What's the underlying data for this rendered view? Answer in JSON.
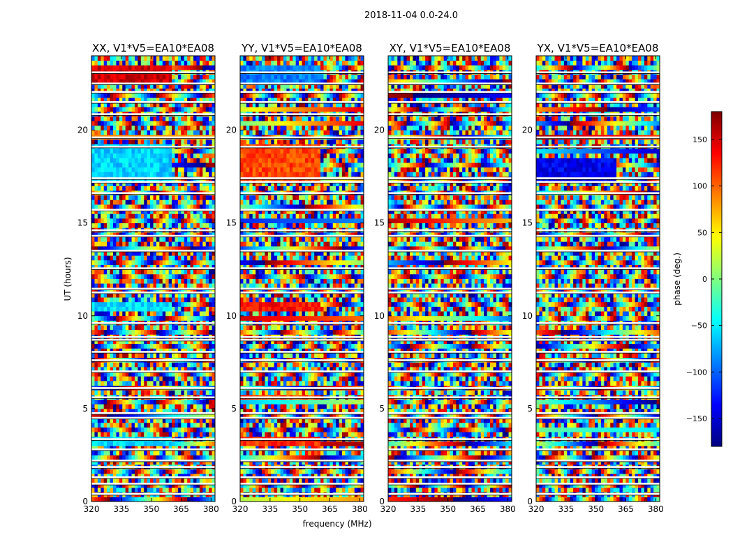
{
  "chart_data": {
    "type": "heatmap",
    "title": "2018-11-04 0.0-24.0",
    "xlabel": "frequency (MHz)",
    "ylabel": "UT (hours)",
    "xlim": [
      320,
      382
    ],
    "ylim": [
      0,
      24
    ],
    "x_ticks": [
      320,
      335,
      350,
      365,
      380
    ],
    "y_ticks": [
      0,
      5,
      10,
      15,
      20
    ],
    "colorbar": {
      "label": "phase (deg.)",
      "range": [
        -180,
        180
      ],
      "ticks": [
        -150,
        -100,
        -50,
        0,
        50,
        100,
        150
      ],
      "tick_labels": [
        "−150",
        "−100",
        "−50",
        "0",
        "50",
        "100",
        "150"
      ],
      "colormap": "jet",
      "colors": [
        "#00007f",
        "#0000ff",
        "#007fff",
        "#00ffff",
        "#7fff7f",
        "#ffff00",
        "#ff7f00",
        "#ff0000",
        "#7f0000"
      ]
    },
    "panels": [
      {
        "name": "XX, V1*V5=EA10*EA08",
        "pol": "XX"
      },
      {
        "name": "YY, V1*V5=EA10*EA08",
        "pol": "YY"
      },
      {
        "name": "XY, V1*V5=EA10*EA08",
        "pol": "XY"
      },
      {
        "name": "YX, V1*V5=EA10*EA08",
        "pol": "YX"
      }
    ],
    "flagged_ut_hours": [
      0.4,
      0.95,
      1.3,
      1.85,
      2.2,
      2.8,
      3.35,
      4.5,
      4.75,
      5.6,
      6.1,
      7.0,
      7.6,
      8.05,
      8.7,
      8.85,
      9.6,
      11.25,
      11.45,
      12.55,
      13.5,
      14.3,
      14.6,
      15.7,
      16.6,
      17.2,
      17.4,
      19.1,
      19.6,
      20.85,
      21.5,
      22.05,
      22.5,
      23.1
    ],
    "phase_patterns": {
      "XX": {
        "coherent_bands_hours": [
          [
            17.3,
            19.3,
            -60
          ],
          [
            10.3,
            10.8,
            -55
          ],
          [
            3.0,
            3.4,
            -55
          ],
          [
            22.4,
            23.6,
            150
          ]
        ]
      },
      "YY": {
        "coherent_bands_hours": [
          [
            17.3,
            19.3,
            110
          ],
          [
            10.3,
            10.8,
            130
          ],
          [
            3.0,
            3.4,
            120
          ],
          [
            5.4,
            5.7,
            110
          ],
          [
            22.4,
            23.6,
            -90
          ]
        ]
      },
      "XY": {
        "coherent_bands_hours": []
      },
      "YX": {
        "coherent_bands_hours": [
          [
            17.3,
            18.5,
            -140
          ]
        ]
      }
    }
  }
}
